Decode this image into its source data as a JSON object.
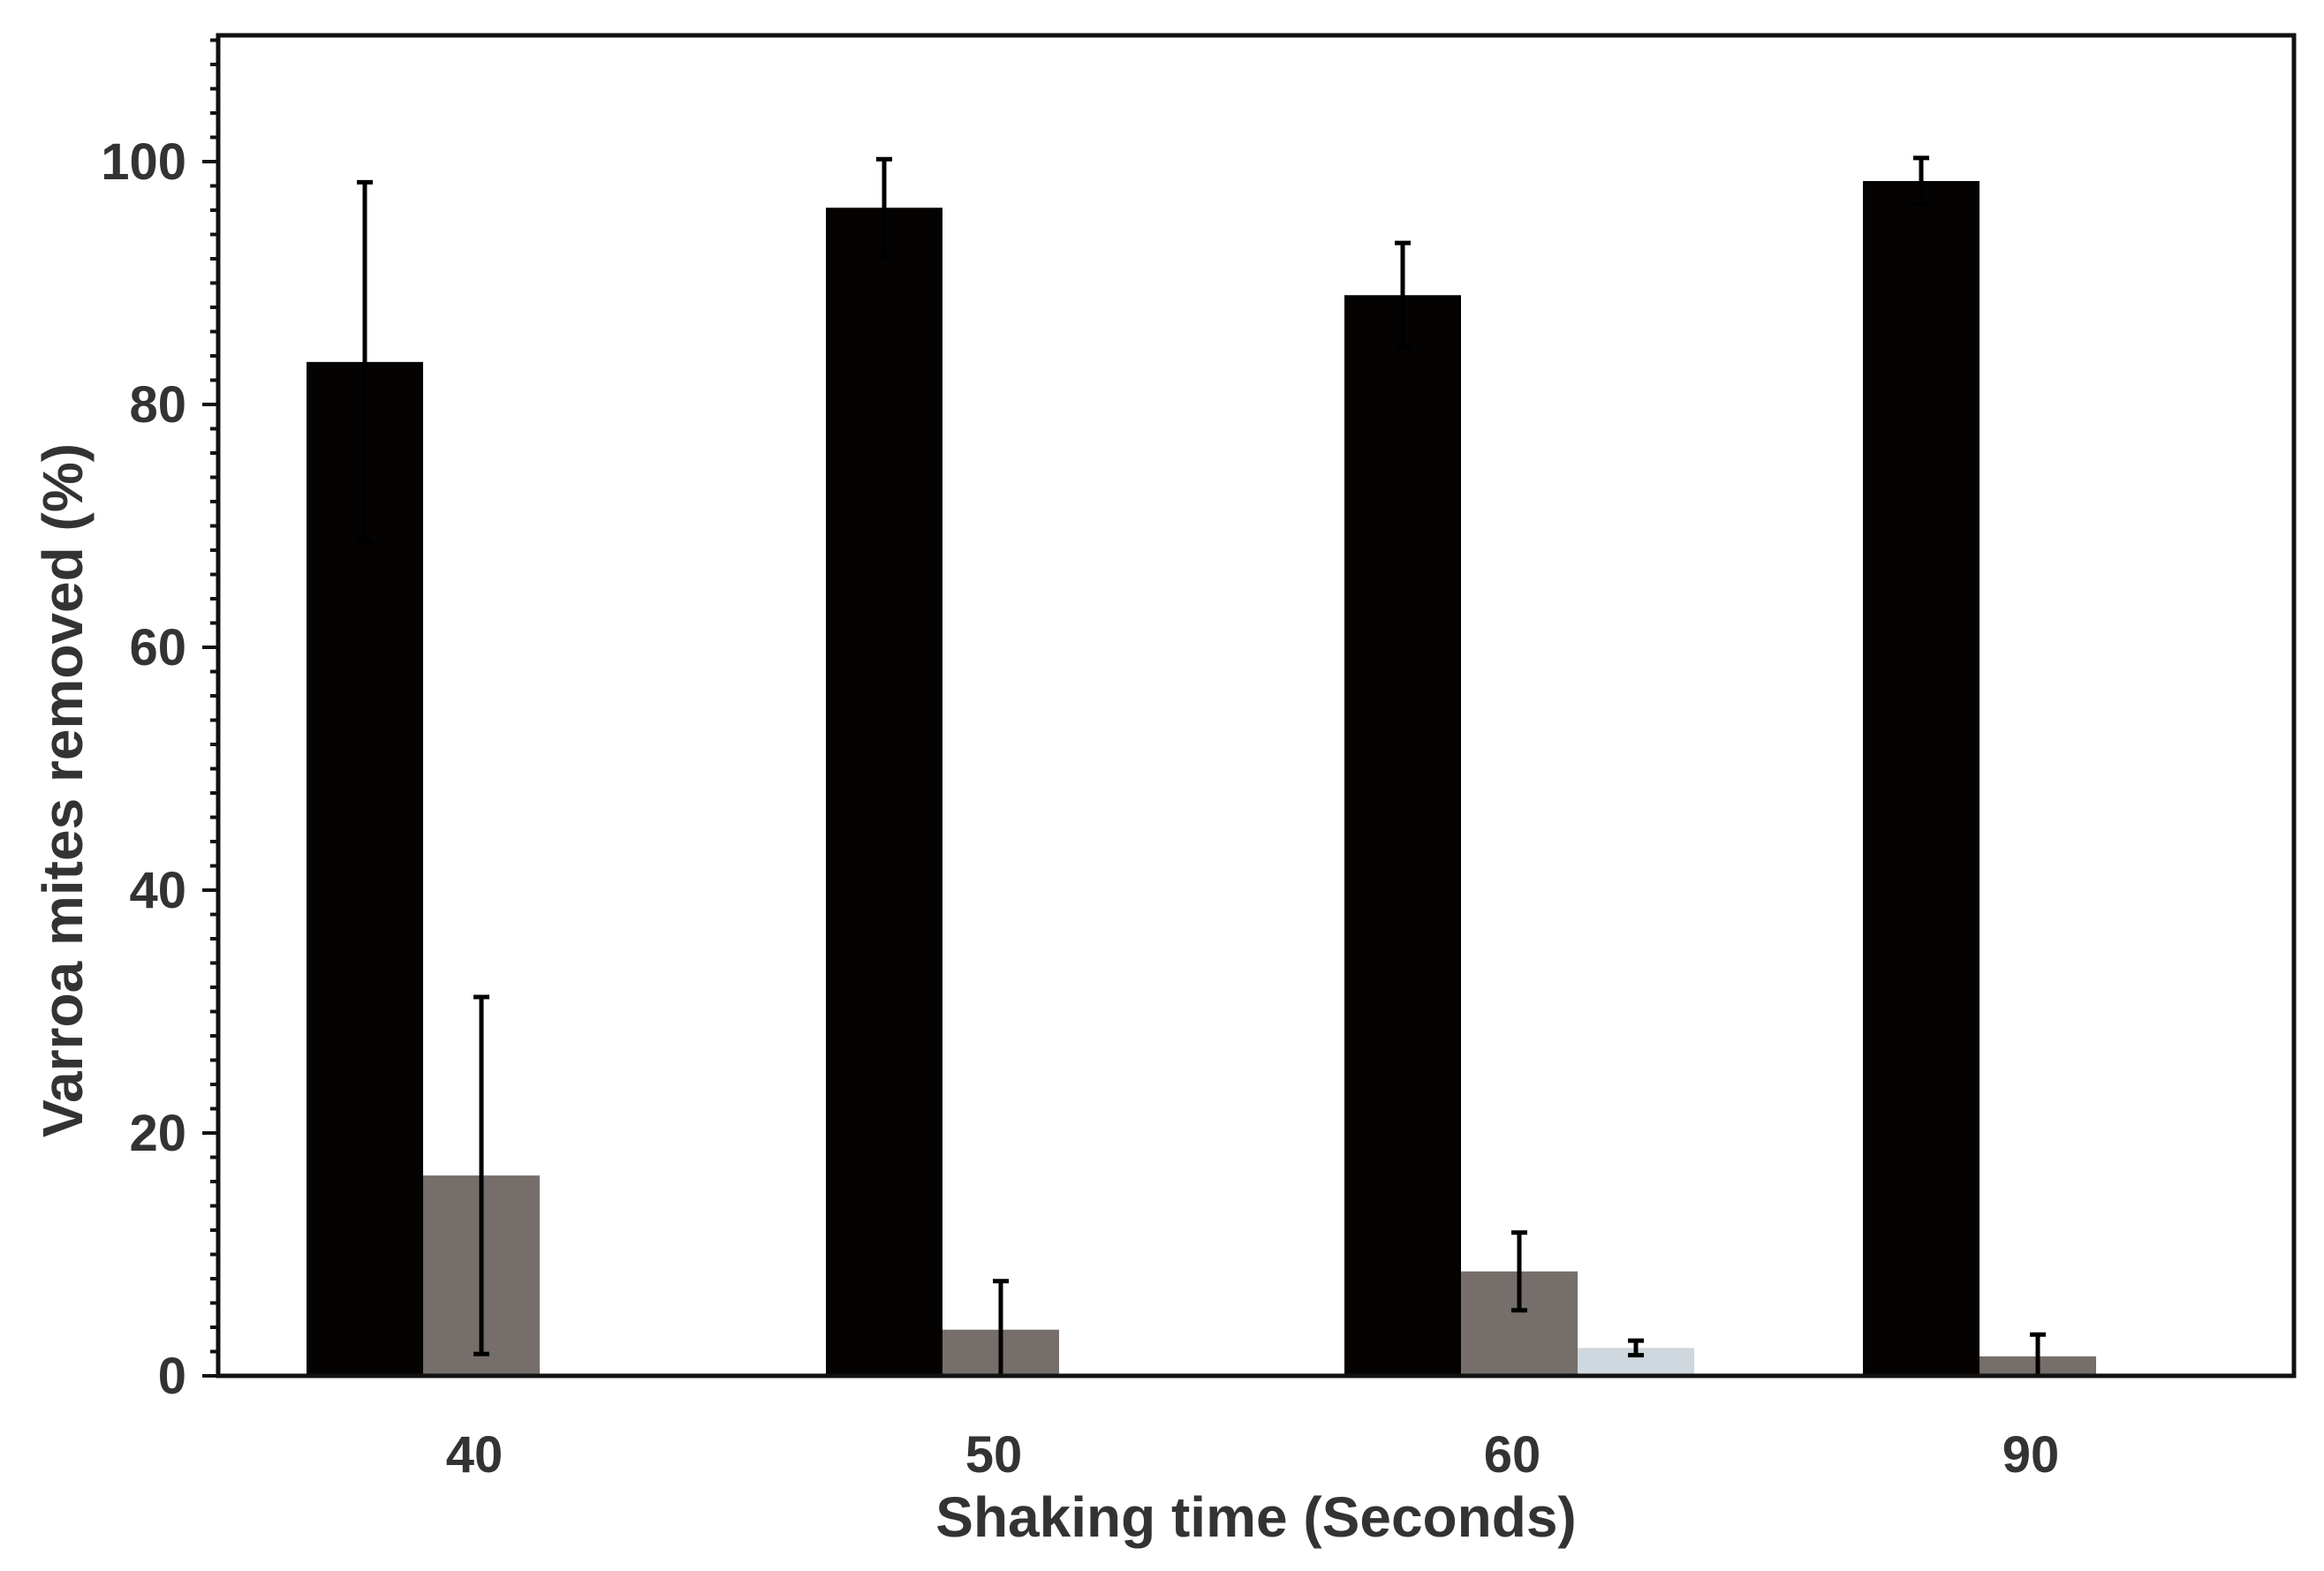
{
  "chart_data": {
    "type": "bar",
    "title": "",
    "xlabel": "Shaking time (Seconds)",
    "ylabel": "Varroa mites removed (%)",
    "ylim": [
      0,
      110
    ],
    "yticks": [
      0,
      20,
      40,
      60,
      80,
      100
    ],
    "y_tick_labels": [
      "0",
      "20",
      "40",
      "60",
      "80",
      "100"
    ],
    "y_minor_step": 2,
    "categories": [
      "40",
      "50",
      "60",
      "90"
    ],
    "grid": false,
    "legend": "none",
    "series": [
      {
        "name": "series-1",
        "color": "#050302",
        "values": [
          83.5,
          96.2,
          89.0,
          98.4
        ],
        "errors": [
          14.8,
          4.0,
          4.3,
          1.9
        ]
      },
      {
        "name": "series-2",
        "color": "#756e6a",
        "values": [
          16.5,
          3.8,
          8.6,
          1.6
        ],
        "errors": [
          14.7,
          4.0,
          3.2,
          1.8
        ]
      },
      {
        "name": "series-3",
        "color": "#cfd8de",
        "values": [
          0.0,
          0.0,
          2.3,
          0.0
        ],
        "errors": [
          0.0,
          0.0,
          0.6,
          0.0
        ]
      }
    ]
  }
}
